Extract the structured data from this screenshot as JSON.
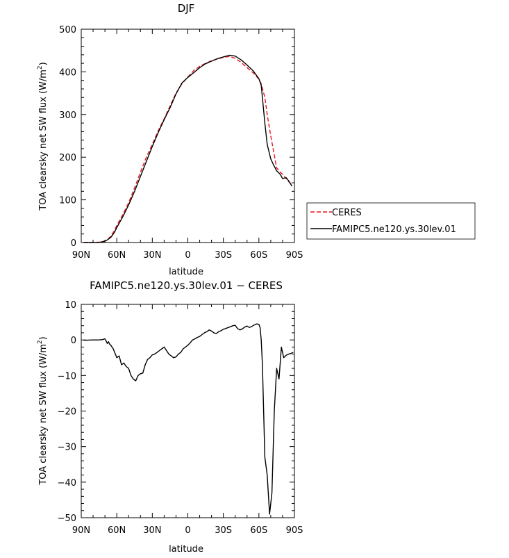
{
  "chart_data": [
    {
      "type": "line",
      "title": "DJF",
      "xlabel": "latitude",
      "ylabel_main": "TOA clearsky net SW flux (W/m",
      "ylabel_sup": "2",
      "ylabel_close": ")",
      "xlim": [
        90,
        -90
      ],
      "ylim": [
        0,
        500
      ],
      "x_ticks": [
        90,
        60,
        30,
        0,
        -30,
        -60,
        -90
      ],
      "x_tick_labels": [
        "90N",
        "60N",
        "30N",
        "0",
        "30S",
        "60S",
        "90S"
      ],
      "y_ticks": [
        0,
        100,
        200,
        300,
        400,
        500
      ],
      "y_tick_labels": [
        "0",
        "100",
        "200",
        "300",
        "400",
        "500"
      ],
      "legend_position": "right",
      "series": [
        {
          "name": "CERES",
          "color": "#e8141c",
          "dash": "dashed",
          "x": [
            88,
            80,
            75,
            72,
            70,
            68,
            65,
            62,
            60,
            55,
            50,
            45,
            40,
            35,
            30,
            25,
            20,
            15,
            10,
            5,
            0,
            -5,
            -10,
            -15,
            -20,
            -25,
            -30,
            -35,
            -40,
            -45,
            -50,
            -55,
            -60,
            -62,
            -65,
            -67,
            -70,
            -72,
            -75,
            -78,
            -80,
            -83,
            -85,
            -88
          ],
          "y": [
            0,
            0,
            1,
            2,
            4,
            6,
            15,
            28,
            40,
            65,
            93,
            128,
            165,
            200,
            230,
            262,
            290,
            320,
            350,
            372,
            388,
            403,
            413,
            420,
            426,
            430,
            434,
            436,
            432,
            422,
            410,
            398,
            383,
            372,
            340,
            300,
            250,
            220,
            175,
            165,
            160,
            150,
            143,
            135
          ]
        },
        {
          "name": "FAMIPC5.ne120.ys.30lev.01",
          "color": "#000000",
          "dash": "solid",
          "x": [
            88,
            80,
            75,
            72,
            70,
            68,
            65,
            62,
            60,
            55,
            50,
            45,
            40,
            35,
            30,
            25,
            20,
            15,
            10,
            5,
            0,
            -5,
            -10,
            -15,
            -20,
            -25,
            -30,
            -35,
            -40,
            -45,
            -50,
            -55,
            -60,
            -62,
            -65,
            -67,
            -70,
            -72,
            -75,
            -78,
            -80,
            -83,
            -85,
            -88
          ],
          "y": [
            0,
            0,
            0,
            2,
            3,
            6,
            12,
            24,
            35,
            60,
            88,
            120,
            155,
            190,
            225,
            258,
            288,
            316,
            348,
            374,
            387,
            398,
            410,
            419,
            425,
            431,
            435,
            439,
            437,
            428,
            416,
            403,
            384,
            368,
            280,
            230,
            196,
            184,
            168,
            160,
            150,
            152,
            145,
            132
          ]
        }
      ]
    },
    {
      "type": "line",
      "title": "FAMIPC5.ne120.ys.30lev.01 − CERES",
      "xlabel": "latitude",
      "ylabel_main": "TOA clearsky net SW flux (W/m",
      "ylabel_sup": "2",
      "ylabel_close": ")",
      "xlim": [
        90,
        -90
      ],
      "ylim": [
        -50,
        10
      ],
      "x_ticks": [
        90,
        60,
        30,
        0,
        -30,
        -60,
        -90
      ],
      "x_tick_labels": [
        "90N",
        "60N",
        "30N",
        "0",
        "30S",
        "60S",
        "90S"
      ],
      "y_ticks": [
        -50,
        -40,
        -30,
        -20,
        -10,
        0,
        10
      ],
      "y_tick_labels": [
        "−50",
        "−40",
        "−30",
        "−20",
        "−10",
        "0",
        "10"
      ],
      "series": [
        {
          "name": "",
          "color": "#000000",
          "dash": "solid",
          "x": [
            88,
            80,
            75,
            72,
            70,
            69,
            68,
            67,
            66,
            65,
            63,
            60,
            58,
            56,
            54,
            52,
            50,
            48,
            46,
            44,
            42,
            40,
            38,
            36,
            34,
            32,
            30,
            28,
            26,
            24,
            22,
            20,
            18,
            16,
            14,
            12,
            10,
            8,
            6,
            4,
            2,
            0,
            -2,
            -4,
            -6,
            -8,
            -10,
            -12,
            -14,
            -16,
            -18,
            -20,
            -22,
            -24,
            -26,
            -28,
            -30,
            -32,
            -34,
            -36,
            -38,
            -40,
            -42,
            -44,
            -46,
            -48,
            -50,
            -52,
            -54,
            -56,
            -58,
            -60,
            -61,
            -62,
            -63,
            -65,
            -67,
            -69,
            -71,
            -73,
            -75,
            -77,
            -79,
            -81,
            -83,
            -85,
            -87,
            -89
          ],
          "y": [
            -0.1,
            0,
            0,
            0.1,
            0.3,
            -0.3,
            -1,
            -0.5,
            -1.2,
            -1.5,
            -2.5,
            -5,
            -4.5,
            -7,
            -6.5,
            -7.5,
            -8,
            -10,
            -11,
            -11.5,
            -10,
            -9.5,
            -9.3,
            -7,
            -5.5,
            -5,
            -4.2,
            -4,
            -3.5,
            -3,
            -2.5,
            -2,
            -3,
            -4,
            -4.5,
            -5,
            -4.8,
            -4,
            -3.5,
            -2.5,
            -2,
            -1.5,
            -0.8,
            0,
            0.3,
            0.7,
            1,
            1.5,
            2,
            2.3,
            2.8,
            2.5,
            2,
            1.8,
            2.3,
            2.6,
            3,
            3.2,
            3.5,
            3.7,
            4,
            4.1,
            3.2,
            2.8,
            3.1,
            3.6,
            3.9,
            3.5,
            3.8,
            4.2,
            4.5,
            4.4,
            3.5,
            0,
            -7,
            -33,
            -38,
            -49,
            -43,
            -20,
            -8,
            -11,
            -2,
            -5,
            -4.3,
            -4,
            -3.8,
            -3.5
          ]
        }
      ]
    }
  ]
}
